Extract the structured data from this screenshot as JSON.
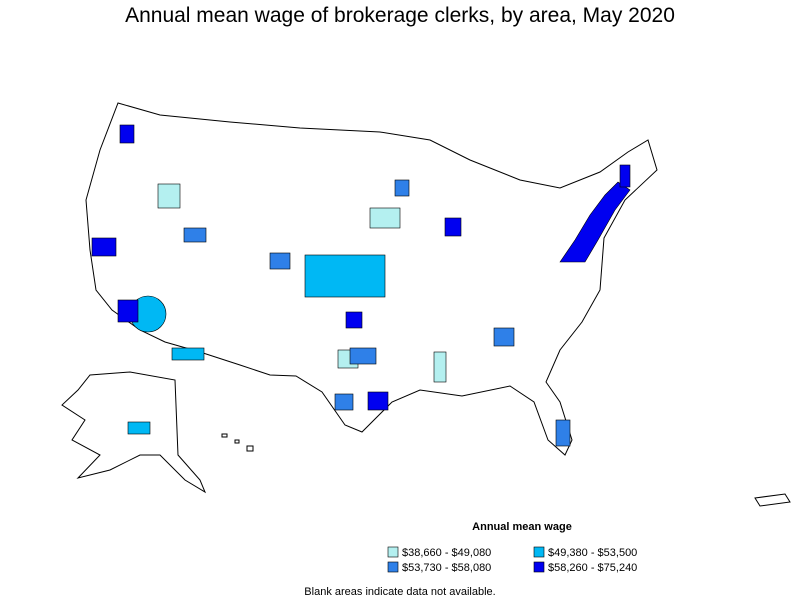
{
  "title": "Annual mean wage of brokerage clerks, by area, May 2020",
  "legend": {
    "title": "Annual mean wage",
    "items": [
      {
        "label": "$38,660 - $49,080",
        "color": "#b4f0f0"
      },
      {
        "label": "$49,380 - $53,500",
        "color": "#00b8f4"
      },
      {
        "label": "$53,730 - $58,080",
        "color": "#2f80e8"
      },
      {
        "label": "$58,260 - $75,240",
        "color": "#0000f0"
      }
    ]
  },
  "note": "Blank areas indicate data not available."
}
